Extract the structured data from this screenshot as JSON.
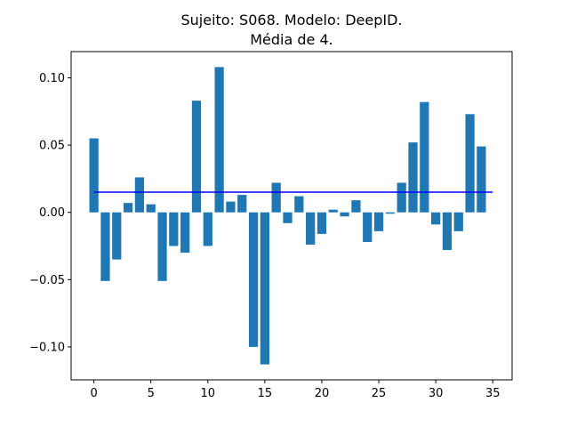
{
  "chart_data": {
    "type": "bar",
    "title_line1": "Sujeito: S068. Modelo: DeepID.",
    "title_line2": "Média de 4.",
    "xlabel": "",
    "ylabel": "",
    "x": [
      0,
      1,
      2,
      3,
      4,
      5,
      6,
      7,
      8,
      9,
      10,
      11,
      12,
      13,
      14,
      15,
      16,
      17,
      18,
      19,
      20,
      21,
      22,
      23,
      24,
      25,
      26,
      27,
      28,
      29,
      30,
      31,
      32,
      33,
      34
    ],
    "values": [
      0.055,
      -0.051,
      -0.035,
      0.007,
      0.026,
      0.006,
      -0.051,
      -0.025,
      -0.03,
      0.083,
      -0.025,
      0.108,
      0.008,
      0.013,
      -0.1,
      -0.113,
      0.022,
      -0.008,
      0.012,
      -0.024,
      -0.016,
      0.002,
      -0.003,
      0.009,
      -0.022,
      -0.014,
      -0.001,
      0.022,
      0.052,
      0.082,
      -0.009,
      -0.028,
      -0.014,
      0.073,
      0.049
    ],
    "mean_line": {
      "value": 0.015,
      "x_start": 0,
      "x_end": 35,
      "color": "#0000ff"
    },
    "bar_color": "#1f77b4",
    "xlim": [
      -2.0,
      36.7
    ],
    "ylim": [
      -0.1245,
      0.1195
    ],
    "xticks": [
      0,
      5,
      10,
      15,
      20,
      25,
      30,
      35
    ],
    "xtick_labels": [
      "0",
      "5",
      "10",
      "15",
      "20",
      "25",
      "30",
      "35"
    ],
    "yticks": [
      0.1,
      0.05,
      0.0,
      -0.05,
      -0.1
    ],
    "ytick_labels": [
      "0.10",
      "0.05",
      "0.00",
      "−0.05",
      "−0.10"
    ],
    "grid": false,
    "legend": "none"
  }
}
